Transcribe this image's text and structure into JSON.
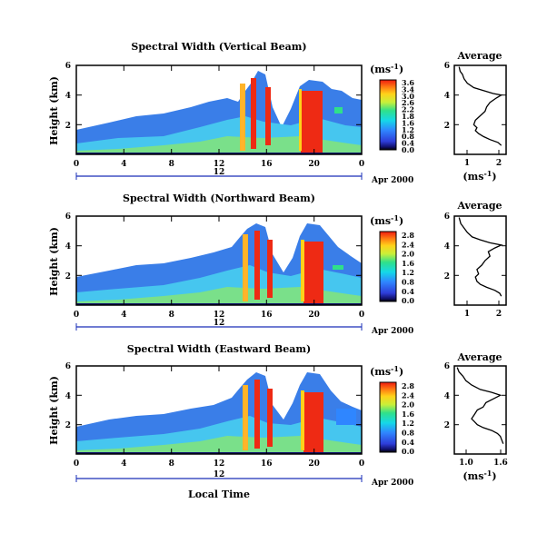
{
  "figure": {
    "xlabel": "Local Time",
    "colorbar_unit": "(ms",
    "colorbar_unit_sup": "-1",
    "colorbar_unit_end": ")",
    "average_title": "Average",
    "average_xlabel": "(ms",
    "average_xlabel_end": ")"
  },
  "chart_data": [
    {
      "type": "heatmap",
      "title": "Spectral Width (Vertical Beam)",
      "ylabel": "Height (km)",
      "y_ticks": [
        "6",
        "4",
        "2"
      ],
      "x_ticks": [
        "0",
        "4",
        "8",
        "12",
        "16",
        "20",
        "0"
      ],
      "date_label": "12",
      "date_suffix": "Apr 2000",
      "xlim": [
        0,
        24
      ],
      "ylim": [
        0,
        6
      ],
      "colorbar_ticks": [
        "3.6",
        "3.4",
        "3.0",
        "2.6",
        "2.2",
        "1.8",
        "1.6",
        "1.2",
        "0.8",
        "0.4",
        "0.0"
      ],
      "colorbar_range": [
        0,
        3.6
      ],
      "average_profile": {
        "x_ticks": [
          "1",
          "2"
        ],
        "y_ticks": [
          "6",
          "4",
          "2"
        ],
        "xlim": [
          0.6,
          2.2
        ],
        "points": [
          [
            0.75,
            5.9
          ],
          [
            0.78,
            5.6
          ],
          [
            0.85,
            5.4
          ],
          [
            0.9,
            5.1
          ],
          [
            1.0,
            4.8
          ],
          [
            1.2,
            4.5
          ],
          [
            1.5,
            4.3
          ],
          [
            1.8,
            4.1
          ],
          [
            2.05,
            4.0
          ],
          [
            1.9,
            3.8
          ],
          [
            1.7,
            3.5
          ],
          [
            1.6,
            3.2
          ],
          [
            1.55,
            2.9
          ],
          [
            1.4,
            2.6
          ],
          [
            1.25,
            2.3
          ],
          [
            1.2,
            2.0
          ],
          [
            1.3,
            1.8
          ],
          [
            1.25,
            1.6
          ],
          [
            1.35,
            1.4
          ],
          [
            1.5,
            1.2
          ],
          [
            1.7,
            1.0
          ],
          [
            1.95,
            0.8
          ],
          [
            2.05,
            0.6
          ]
        ]
      }
    },
    {
      "type": "heatmap",
      "title": "Spectral Width (Northward Beam)",
      "ylabel": "Height (km)",
      "y_ticks": [
        "6",
        "4",
        "2"
      ],
      "x_ticks": [
        "0",
        "4",
        "8",
        "12",
        "16",
        "20",
        "0"
      ],
      "date_label": "12",
      "date_suffix": "Apr 2000",
      "xlim": [
        0,
        24
      ],
      "ylim": [
        0,
        6
      ],
      "colorbar_ticks": [
        "2.8",
        "2.4",
        "2.0",
        "1.6",
        "1.2",
        "0.8",
        "0.4",
        "0.0"
      ],
      "colorbar_range": [
        0,
        2.8
      ],
      "average_profile": {
        "x_ticks": [
          "1",
          "2"
        ],
        "y_ticks": [
          "6",
          "4",
          "2"
        ],
        "xlim": [
          0.6,
          2.2
        ],
        "points": [
          [
            0.75,
            5.9
          ],
          [
            0.8,
            5.5
          ],
          [
            0.9,
            5.2
          ],
          [
            1.0,
            4.9
          ],
          [
            1.15,
            4.6
          ],
          [
            1.4,
            4.4
          ],
          [
            1.7,
            4.2
          ],
          [
            2.05,
            4.05
          ],
          [
            1.85,
            3.85
          ],
          [
            1.65,
            3.6
          ],
          [
            1.7,
            3.3
          ],
          [
            1.55,
            3.0
          ],
          [
            1.45,
            2.7
          ],
          [
            1.3,
            2.4
          ],
          [
            1.35,
            2.1
          ],
          [
            1.25,
            1.9
          ],
          [
            1.3,
            1.6
          ],
          [
            1.4,
            1.4
          ],
          [
            1.6,
            1.2
          ],
          [
            1.85,
            1.0
          ],
          [
            2.0,
            0.8
          ],
          [
            2.05,
            0.6
          ]
        ]
      }
    },
    {
      "type": "heatmap",
      "title": "Spectral Width (Eastward Beam)",
      "ylabel": "Height (km)",
      "y_ticks": [
        "6",
        "4",
        "2"
      ],
      "x_ticks": [
        "0",
        "4",
        "8",
        "12",
        "16",
        "20",
        "0"
      ],
      "date_label": "12",
      "date_suffix": "Apr 2000",
      "xlim": [
        0,
        24
      ],
      "ylim": [
        0,
        6
      ],
      "colorbar_ticks": [
        "2.8",
        "2.4",
        "2.0",
        "1.6",
        "1.2",
        "0.8",
        "0.4",
        "0.0"
      ],
      "colorbar_range": [
        0,
        2.8
      ],
      "average_profile": {
        "x_ticks": [
          "1.0",
          "1.6"
        ],
        "y_ticks": [
          "6",
          "4",
          "2"
        ],
        "xlim": [
          0.8,
          1.7
        ],
        "points": [
          [
            0.85,
            5.9
          ],
          [
            0.88,
            5.6
          ],
          [
            0.95,
            5.3
          ],
          [
            1.0,
            5.0
          ],
          [
            1.1,
            4.7
          ],
          [
            1.25,
            4.4
          ],
          [
            1.45,
            4.2
          ],
          [
            1.6,
            4.0
          ],
          [
            1.5,
            3.8
          ],
          [
            1.35,
            3.5
          ],
          [
            1.3,
            3.2
          ],
          [
            1.2,
            3.0
          ],
          [
            1.15,
            2.7
          ],
          [
            1.1,
            2.4
          ],
          [
            1.15,
            2.2
          ],
          [
            1.2,
            2.0
          ],
          [
            1.3,
            1.8
          ],
          [
            1.45,
            1.6
          ],
          [
            1.55,
            1.4
          ],
          [
            1.6,
            1.2
          ],
          [
            1.62,
            1.0
          ],
          [
            1.65,
            0.7
          ]
        ]
      }
    }
  ]
}
